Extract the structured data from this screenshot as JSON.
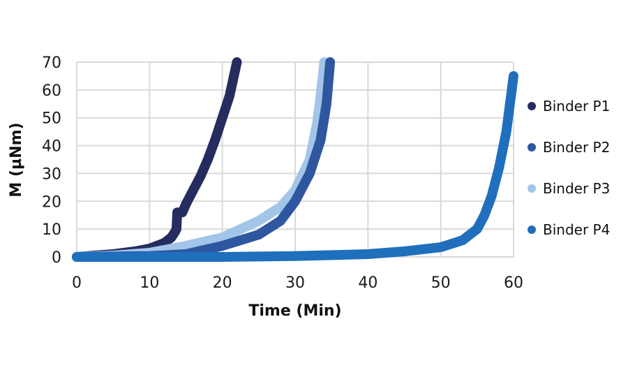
{
  "chart_data": {
    "type": "line",
    "title": "",
    "xlabel": "Time (Min)",
    "ylabel": "M (µNm)",
    "xlim": [
      0,
      60
    ],
    "ylim": [
      0,
      70
    ],
    "xticks": [
      0,
      10,
      20,
      30,
      40,
      50,
      60
    ],
    "yticks": [
      0,
      10,
      20,
      30,
      40,
      50,
      60,
      70
    ],
    "grid": true,
    "legend_position": "right",
    "series": [
      {
        "name": "Binder P1",
        "color": "#252d5f",
        "x": [
          0,
          5,
          8,
          10,
          12,
          13,
          13.5,
          13.7,
          13.8,
          14.5,
          15,
          16,
          17,
          18,
          19,
          20,
          21,
          22
        ],
        "y": [
          0,
          1,
          2,
          3,
          5,
          7,
          9,
          10,
          16,
          16,
          19,
          24,
          29,
          35,
          42,
          50,
          58,
          70
        ]
      },
      {
        "name": "Binder P2",
        "color": "#2f57a0",
        "x": [
          0,
          10,
          15,
          20,
          25,
          28,
          30,
          32,
          33.5,
          34.3,
          34.8
        ],
        "y": [
          0,
          0.3,
          1,
          4,
          8,
          13,
          20,
          30,
          42,
          55,
          70
        ]
      },
      {
        "name": "Binder P3",
        "color": "#a3c5e8",
        "x": [
          0,
          5,
          10,
          15,
          20,
          25,
          28,
          30,
          32,
          33,
          33.5,
          34
        ],
        "y": [
          0,
          0.5,
          1.5,
          4,
          7,
          13,
          18,
          24,
          35,
          48,
          58,
          70
        ]
      },
      {
        "name": "Binder P4",
        "color": "#1f6fbd",
        "x": [
          0,
          20,
          30,
          40,
          45,
          50,
          53,
          55,
          56,
          57,
          58,
          59,
          60
        ],
        "y": [
          0,
          0,
          0.3,
          1,
          2,
          3.5,
          6,
          10,
          15,
          22,
          32,
          45,
          65
        ]
      }
    ]
  }
}
